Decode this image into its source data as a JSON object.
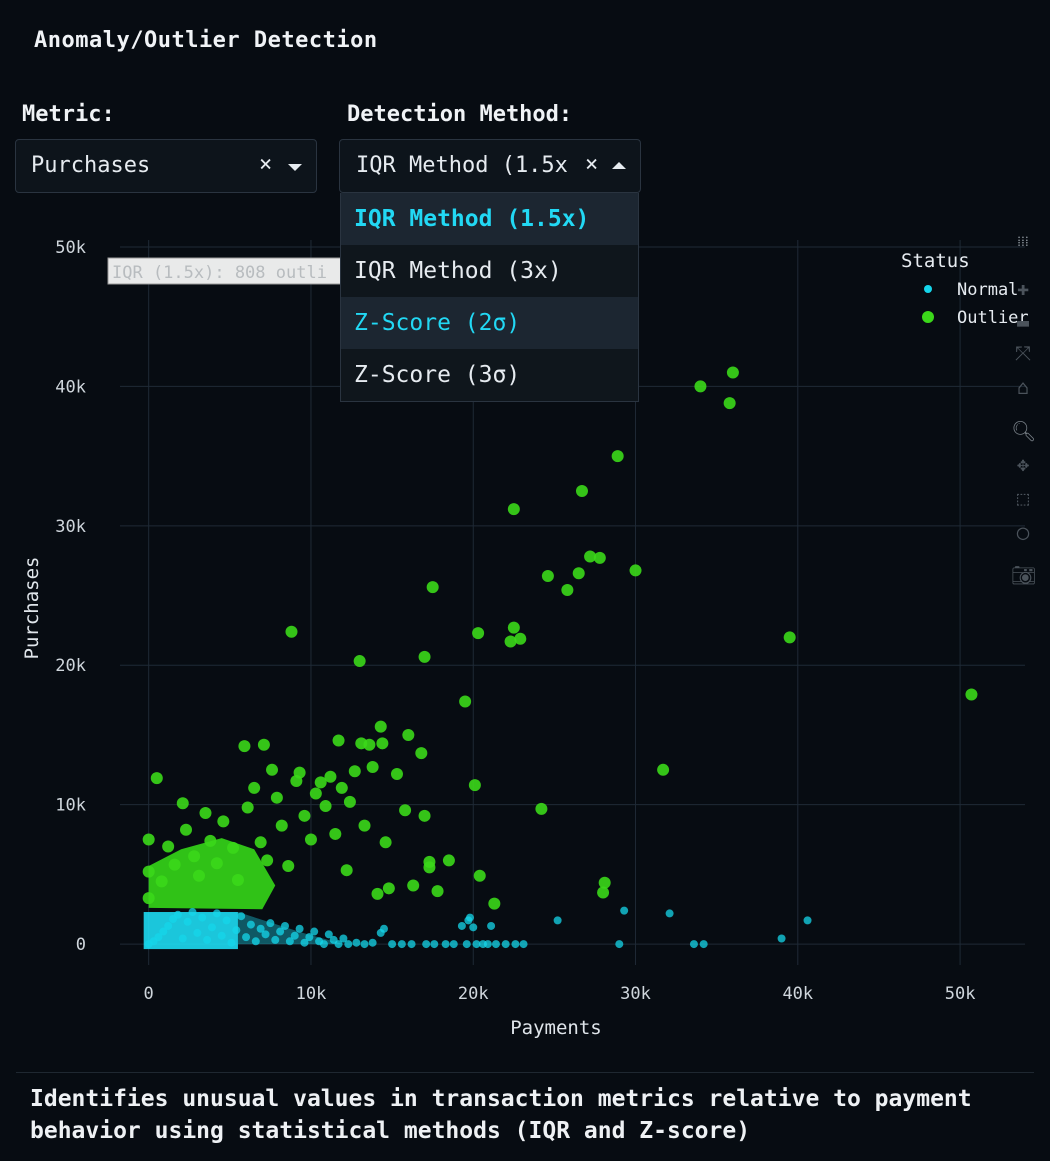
{
  "page": {
    "title": "Anomaly/Outlier Detection",
    "description": "Identifies unusual values in transaction metrics relative to payment behavior using statistical methods (IQR and Z-score)"
  },
  "controls": {
    "metric": {
      "label": "Metric:",
      "value": "Purchases",
      "clear_icon": "×"
    },
    "method": {
      "label": "Detection Method:",
      "value": "IQR Method (1.5x",
      "clear_icon": "×",
      "options": [
        "IQR Method (1.5x)",
        "IQR Method (3x)",
        "Z-Score (2σ)",
        "Z-Score (3σ)"
      ],
      "selected_index": 0,
      "hover_index": 2
    }
  },
  "modebar": {
    "icons": [
      "logo-icon",
      "zoom-in-icon",
      "zoom-out-icon",
      "autoscale-icon",
      "home-icon",
      "zoom-icon",
      "pan-icon",
      "box-select-icon",
      "lasso-select-icon",
      "camera-icon"
    ]
  },
  "chart_data": {
    "type": "scatter",
    "xlabel": "Payments",
    "ylabel": "Purchases",
    "xlim": [
      -3000,
      54000
    ],
    "ylim": [
      -1500,
      50500
    ],
    "xticks": [
      0,
      10000,
      20000,
      30000,
      40000,
      50000
    ],
    "xtick_labels": [
      "0",
      "10k",
      "20k",
      "30k",
      "40k",
      "50k"
    ],
    "yticks": [
      0,
      10000,
      20000,
      30000,
      40000,
      50000
    ],
    "ytick_labels": [
      "0",
      "10k",
      "20k",
      "30k",
      "40k",
      "50k"
    ],
    "grid": true,
    "annotation": "IQR (1.5x): 808 outli",
    "legend": {
      "title": "Status",
      "position": "top-right"
    },
    "series": [
      {
        "name": "Normal",
        "color": "#15d5ea",
        "points": [
          [
            0,
            0
          ],
          [
            300,
            200
          ],
          [
            600,
            500
          ],
          [
            900,
            900
          ],
          [
            1200,
            1300
          ],
          [
            1500,
            1800
          ],
          [
            1800,
            2100
          ],
          [
            2100,
            400
          ],
          [
            2400,
            1600
          ],
          [
            2700,
            2300
          ],
          [
            3000,
            800
          ],
          [
            3300,
            1900
          ],
          [
            3600,
            300
          ],
          [
            3900,
            1200
          ],
          [
            4200,
            2200
          ],
          [
            4500,
            600
          ],
          [
            4800,
            1700
          ],
          [
            5100,
            100
          ],
          [
            5400,
            1000
          ],
          [
            5700,
            2000
          ],
          [
            6000,
            500
          ],
          [
            6300,
            1400
          ],
          [
            6600,
            200
          ],
          [
            6900,
            1100
          ],
          [
            7200,
            700
          ],
          [
            7500,
            1500
          ],
          [
            7800,
            300
          ],
          [
            8100,
            900
          ],
          [
            8400,
            1300
          ],
          [
            8700,
            200
          ],
          [
            9000,
            600
          ],
          [
            9300,
            1100
          ],
          [
            9600,
            100
          ],
          [
            9900,
            500
          ],
          [
            10200,
            900
          ],
          [
            10500,
            200
          ],
          [
            10800,
            0
          ],
          [
            11100,
            700
          ],
          [
            11400,
            300
          ],
          [
            11700,
            0
          ],
          [
            12000,
            400
          ],
          [
            12300,
            0
          ],
          [
            12800,
            100
          ],
          [
            13300,
            0
          ],
          [
            13800,
            100
          ],
          [
            14300,
            800
          ],
          [
            14500,
            1100
          ],
          [
            15000,
            0
          ],
          [
            15600,
            0
          ],
          [
            16200,
            0
          ],
          [
            17100,
            0
          ],
          [
            17600,
            0
          ],
          [
            18300,
            0
          ],
          [
            18800,
            0
          ],
          [
            19300,
            1300
          ],
          [
            19700,
            1700
          ],
          [
            19800,
            1900
          ],
          [
            20000,
            1200
          ],
          [
            19600,
            0
          ],
          [
            20200,
            0
          ],
          [
            20600,
            0
          ],
          [
            20900,
            0
          ],
          [
            21100,
            1300
          ],
          [
            21400,
            0
          ],
          [
            22000,
            0
          ],
          [
            22600,
            0
          ],
          [
            23100,
            0
          ],
          [
            25200,
            1700
          ],
          [
            29000,
            0
          ],
          [
            29300,
            2400
          ],
          [
            32100,
            2200
          ],
          [
            33600,
            0
          ],
          [
            34200,
            0
          ],
          [
            39000,
            400
          ],
          [
            40600,
            1700
          ]
        ]
      },
      {
        "name": "Outlier",
        "color": "#3bd81a",
        "points": [
          [
            0,
            7500
          ],
          [
            0,
            5200
          ],
          [
            0,
            3300
          ],
          [
            500,
            11900
          ],
          [
            800,
            4500
          ],
          [
            1200,
            7000
          ],
          [
            1600,
            5700
          ],
          [
            2100,
            10100
          ],
          [
            2300,
            8200
          ],
          [
            2800,
            6300
          ],
          [
            3100,
            4900
          ],
          [
            3500,
            9400
          ],
          [
            3800,
            7400
          ],
          [
            4200,
            5800
          ],
          [
            4600,
            8800
          ],
          [
            5200,
            6900
          ],
          [
            5500,
            4600
          ],
          [
            5900,
            14200
          ],
          [
            6100,
            9800
          ],
          [
            6500,
            11200
          ],
          [
            6900,
            7300
          ],
          [
            7100,
            14300
          ],
          [
            7300,
            6000
          ],
          [
            7600,
            12500
          ],
          [
            7900,
            10500
          ],
          [
            8200,
            8500
          ],
          [
            8600,
            5600
          ],
          [
            8800,
            22400
          ],
          [
            9100,
            11700
          ],
          [
            9300,
            12300
          ],
          [
            9600,
            9200
          ],
          [
            10000,
            7500
          ],
          [
            10300,
            10800
          ],
          [
            10600,
            11600
          ],
          [
            10900,
            9900
          ],
          [
            11200,
            12000
          ],
          [
            11500,
            7900
          ],
          [
            11700,
            14600
          ],
          [
            11900,
            11200
          ],
          [
            12200,
            5300
          ],
          [
            12400,
            10200
          ],
          [
            12700,
            12400
          ],
          [
            13000,
            20300
          ],
          [
            13100,
            14400
          ],
          [
            13300,
            8500
          ],
          [
            13600,
            14300
          ],
          [
            13800,
            12700
          ],
          [
            14100,
            3600
          ],
          [
            14300,
            15600
          ],
          [
            14400,
            14400
          ],
          [
            14600,
            7300
          ],
          [
            14800,
            4000
          ],
          [
            15300,
            12200
          ],
          [
            15800,
            9600
          ],
          [
            16000,
            15000
          ],
          [
            16300,
            4200
          ],
          [
            16800,
            13700
          ],
          [
            17000,
            20600
          ],
          [
            17000,
            9200
          ],
          [
            17300,
            5900
          ],
          [
            17300,
            5500
          ],
          [
            17500,
            25600
          ],
          [
            17800,
            3800
          ],
          [
            18500,
            6000
          ],
          [
            19500,
            17400
          ],
          [
            20100,
            11400
          ],
          [
            20300,
            22300
          ],
          [
            20400,
            4900
          ],
          [
            21300,
            2900
          ],
          [
            22300,
            21700
          ],
          [
            22500,
            22700
          ],
          [
            22500,
            31200
          ],
          [
            22900,
            21900
          ],
          [
            24200,
            9700
          ],
          [
            24600,
            26400
          ],
          [
            25800,
            25400
          ],
          [
            26500,
            26600
          ],
          [
            26700,
            32500
          ],
          [
            27200,
            27800
          ],
          [
            27800,
            27700
          ],
          [
            28000,
            3700
          ],
          [
            28100,
            4400
          ],
          [
            28900,
            35000
          ],
          [
            30000,
            26800
          ],
          [
            31700,
            12500
          ],
          [
            34000,
            40000
          ],
          [
            35800,
            38800
          ],
          [
            36000,
            41000
          ],
          [
            39500,
            22000
          ],
          [
            50700,
            17900
          ]
        ]
      }
    ]
  }
}
